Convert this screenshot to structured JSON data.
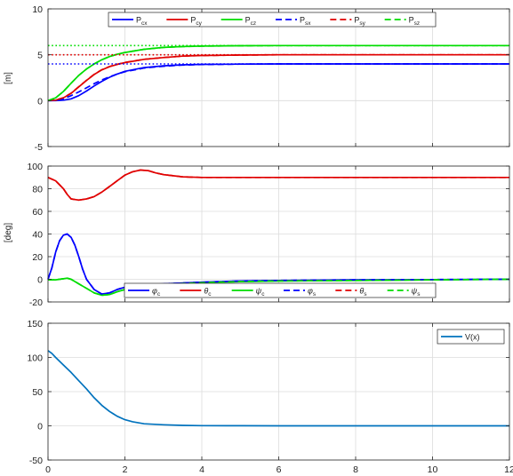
{
  "chart_data": [
    {
      "type": "line",
      "title": "",
      "xlabel": "",
      "ylabel": "[m]",
      "xlim": [
        0,
        12
      ],
      "ylim": [
        -5,
        10
      ],
      "xticks": [
        "",
        "",
        "",
        "",
        "",
        "",
        ""
      ],
      "yticks": [
        "-5",
        "0",
        "5",
        "10"
      ],
      "grid": true,
      "legend_position": "top-center",
      "legend_columns": 6,
      "series": [
        {
          "name": "P",
          "sub": "cx",
          "color": "#0000ff",
          "style": "solid",
          "x": [
            0,
            0.2,
            0.4,
            0.6,
            0.8,
            1.0,
            1.2,
            1.4,
            1.6,
            1.8,
            2.0,
            2.5,
            3.0,
            3.5,
            4,
            5,
            6,
            8,
            10,
            12
          ],
          "values": [
            0,
            0,
            0.05,
            0.2,
            0.55,
            1.05,
            1.6,
            2.1,
            2.55,
            2.9,
            3.2,
            3.6,
            3.8,
            3.9,
            3.95,
            3.98,
            4.0,
            4.0,
            4.0,
            4.0
          ]
        },
        {
          "name": "P",
          "sub": "cy",
          "color": "#e00000",
          "style": "solid",
          "x": [
            0,
            0.2,
            0.4,
            0.6,
            0.8,
            1.0,
            1.2,
            1.4,
            1.6,
            1.8,
            2.0,
            2.5,
            3.0,
            3.5,
            4,
            5,
            6,
            8,
            10,
            12
          ],
          "values": [
            0,
            0.05,
            0.3,
            0.8,
            1.5,
            2.2,
            2.85,
            3.35,
            3.7,
            3.95,
            4.15,
            4.5,
            4.7,
            4.85,
            4.92,
            4.97,
            5.0,
            5.0,
            5.0,
            5.0
          ]
        },
        {
          "name": "P",
          "sub": "cz",
          "color": "#00dd00",
          "style": "solid",
          "x": [
            0,
            0.2,
            0.4,
            0.6,
            0.8,
            1.0,
            1.2,
            1.4,
            1.6,
            1.8,
            2.0,
            2.5,
            3.0,
            3.5,
            4,
            5,
            6,
            8,
            10,
            12
          ],
          "values": [
            0,
            0.3,
            1.0,
            1.9,
            2.75,
            3.45,
            4.0,
            4.45,
            4.8,
            5.05,
            5.25,
            5.6,
            5.8,
            5.9,
            5.95,
            5.98,
            6.0,
            6.0,
            6.0,
            6.0
          ]
        },
        {
          "name": "P",
          "sub": "sx",
          "color": "#0000ff",
          "style": "dashed",
          "x": [
            0,
            0.2,
            0.4,
            0.6,
            0.8,
            1.0,
            1.2,
            1.4,
            1.6,
            1.8,
            2.0,
            2.5,
            3.0,
            3.5,
            4,
            5,
            6,
            8,
            10,
            12
          ],
          "values": [
            0,
            0.02,
            0.2,
            0.55,
            0.95,
            1.4,
            1.85,
            2.25,
            2.6,
            2.9,
            3.15,
            3.55,
            3.75,
            3.87,
            3.93,
            3.98,
            4.0,
            4.0,
            4.0,
            4.0
          ]
        },
        {
          "name": "P",
          "sub": "sy",
          "color": "#e00000",
          "style": "dashed",
          "x": [
            0,
            0.2,
            0.4,
            0.6,
            0.8,
            1.0,
            1.2,
            1.4,
            1.6,
            1.8,
            2.0,
            2.5,
            3.0,
            3.5,
            4,
            5,
            6,
            8,
            10,
            12
          ],
          "values": [
            0,
            0.06,
            0.32,
            0.82,
            1.52,
            2.22,
            2.87,
            3.37,
            3.72,
            3.96,
            4.16,
            4.5,
            4.7,
            4.85,
            4.92,
            4.97,
            5.0,
            5.0,
            5.0,
            5.0
          ]
        },
        {
          "name": "P",
          "sub": "sz",
          "color": "#00dd00",
          "style": "dashed",
          "x": [
            0,
            0.2,
            0.4,
            0.6,
            0.8,
            1.0,
            1.2,
            1.4,
            1.6,
            1.8,
            2.0,
            2.5,
            3.0,
            3.5,
            4,
            5,
            6,
            8,
            10,
            12
          ],
          "values": [
            0,
            0.3,
            1.0,
            1.9,
            2.75,
            3.45,
            4.0,
            4.45,
            4.8,
            5.05,
            5.25,
            5.6,
            5.8,
            5.9,
            5.95,
            5.98,
            6.0,
            6.0,
            6.0,
            6.0
          ]
        },
        {
          "name": "",
          "color": "#0000ff",
          "style": "dotted",
          "x": [
            0,
            12
          ],
          "values": [
            4,
            4
          ]
        },
        {
          "name": "",
          "color": "#e00000",
          "style": "dotted",
          "x": [
            0,
            12
          ],
          "values": [
            5,
            5
          ]
        },
        {
          "name": "",
          "color": "#00dd00",
          "style": "dotted",
          "x": [
            0,
            12
          ],
          "values": [
            6,
            6
          ]
        }
      ]
    },
    {
      "type": "line",
      "title": "",
      "xlabel": "",
      "ylabel": "[deg]",
      "xlim": [
        0,
        12
      ],
      "ylim": [
        -20,
        100
      ],
      "xticks": [
        "",
        "",
        "",
        "",
        "",
        "",
        ""
      ],
      "yticks": [
        "-20",
        "0",
        "20",
        "40",
        "60",
        "80",
        "100"
      ],
      "grid": true,
      "legend_position": "lower-center",
      "legend_columns": 6,
      "series": [
        {
          "name": "φ",
          "sub": "c",
          "color": "#0000ff",
          "style": "solid",
          "x": [
            0,
            0.1,
            0.2,
            0.3,
            0.4,
            0.5,
            0.6,
            0.7,
            0.8,
            0.9,
            1.0,
            1.2,
            1.4,
            1.6,
            1.8,
            2.0,
            2.5,
            3,
            4,
            5,
            6,
            8,
            10,
            12
          ],
          "values": [
            0,
            10,
            24,
            34,
            39,
            40,
            37,
            30,
            20,
            9,
            0,
            -9,
            -13,
            -12,
            -9,
            -7,
            -5,
            -4,
            -2.5,
            -1.5,
            -1,
            -0.5,
            -0.2,
            0
          ]
        },
        {
          "name": "θ",
          "sub": "c",
          "color": "#e00000",
          "style": "solid",
          "x": [
            0,
            0.2,
            0.4,
            0.5,
            0.6,
            0.8,
            1.0,
            1.2,
            1.4,
            1.6,
            1.8,
            2.0,
            2.2,
            2.4,
            2.6,
            2.8,
            3.0,
            3.5,
            4,
            5,
            6,
            8,
            10,
            12
          ],
          "values": [
            90,
            87,
            80,
            75,
            71,
            70,
            71,
            73,
            77,
            82,
            87,
            92,
            95,
            96.5,
            96,
            94,
            92.5,
            90.5,
            90,
            90,
            90,
            90,
            90,
            90
          ]
        },
        {
          "name": "ψ",
          "sub": "c",
          "color": "#00dd00",
          "style": "solid",
          "x": [
            0,
            0.2,
            0.4,
            0.5,
            0.6,
            0.8,
            1.0,
            1.2,
            1.4,
            1.6,
            1.8,
            2.0,
            2.5,
            3,
            4,
            5,
            6,
            8,
            10,
            12
          ],
          "values": [
            -0.5,
            -0.5,
            0.5,
            1,
            0,
            -4,
            -8,
            -12,
            -14,
            -13.5,
            -11,
            -9,
            -6,
            -4.5,
            -3,
            -2,
            -1.5,
            -1,
            -0.5,
            0
          ]
        },
        {
          "name": "φ",
          "sub": "s",
          "color": "#0000ff",
          "style": "dashed",
          "x": [
            0,
            0.1,
            0.2,
            0.3,
            0.4,
            0.5,
            0.6,
            0.7,
            0.8,
            0.9,
            1.0,
            1.2,
            1.4,
            1.6,
            1.8,
            2.0,
            2.5,
            3,
            4,
            5,
            6,
            8,
            10,
            12
          ],
          "values": [
            0,
            10,
            24,
            34,
            39,
            40,
            37,
            30,
            20,
            9,
            0,
            -9,
            -13,
            -12,
            -9,
            -7,
            -5,
            -4,
            -2.5,
            -1.5,
            -1,
            -0.5,
            -0.2,
            0
          ]
        },
        {
          "name": "θ",
          "sub": "s",
          "color": "#e00000",
          "style": "dashed",
          "x": [
            0,
            0.2,
            0.4,
            0.5,
            0.6,
            0.8,
            1.0,
            1.2,
            1.4,
            1.6,
            1.8,
            2.0,
            2.2,
            2.4,
            2.6,
            2.8,
            3.0,
            3.5,
            4,
            5,
            6,
            8,
            10,
            12
          ],
          "values": [
            90,
            87,
            80,
            75,
            71,
            70,
            71,
            73,
            77,
            82,
            87,
            92,
            95,
            96.5,
            96,
            94,
            92.5,
            90.5,
            90,
            90,
            90,
            90,
            90,
            90
          ]
        },
        {
          "name": "ψ",
          "sub": "s",
          "color": "#00dd00",
          "style": "dashed",
          "x": [
            0,
            0.2,
            0.4,
            0.5,
            0.6,
            0.8,
            1.0,
            1.2,
            1.4,
            1.6,
            1.8,
            2.0,
            2.5,
            3,
            4,
            5,
            6,
            8,
            10,
            12
          ],
          "values": [
            -0.5,
            -0.5,
            0.5,
            1,
            0,
            -4,
            -8,
            -12,
            -14,
            -13.5,
            -11,
            -9,
            -6,
            -4.5,
            -3,
            -2,
            -1.5,
            -1,
            -0.5,
            0
          ]
        }
      ]
    },
    {
      "type": "line",
      "title": "",
      "xlabel": "",
      "ylabel": "",
      "xlim": [
        0,
        12
      ],
      "ylim": [
        -50,
        150
      ],
      "xticks": [
        "0",
        "2",
        "4",
        "6",
        "8",
        "10",
        "12"
      ],
      "yticks": [
        "-50",
        "0",
        "50",
        "100",
        "150"
      ],
      "grid": true,
      "legend_position": "top-right",
      "legend_columns": 1,
      "series": [
        {
          "name": "V(x)",
          "sub": "",
          "color": "#0072bd",
          "style": "solid",
          "x": [
            0,
            0.1,
            0.2,
            0.4,
            0.6,
            0.8,
            1.0,
            1.2,
            1.4,
            1.6,
            1.8,
            2.0,
            2.2,
            2.5,
            3.0,
            3.5,
            4,
            5,
            6,
            8,
            10,
            12
          ],
          "values": [
            110,
            106,
            100,
            89,
            78,
            66,
            54,
            41,
            30,
            21,
            14,
            9,
            6,
            3,
            1.5,
            0.7,
            0.3,
            0.1,
            0,
            0,
            0,
            0
          ]
        }
      ]
    }
  ]
}
